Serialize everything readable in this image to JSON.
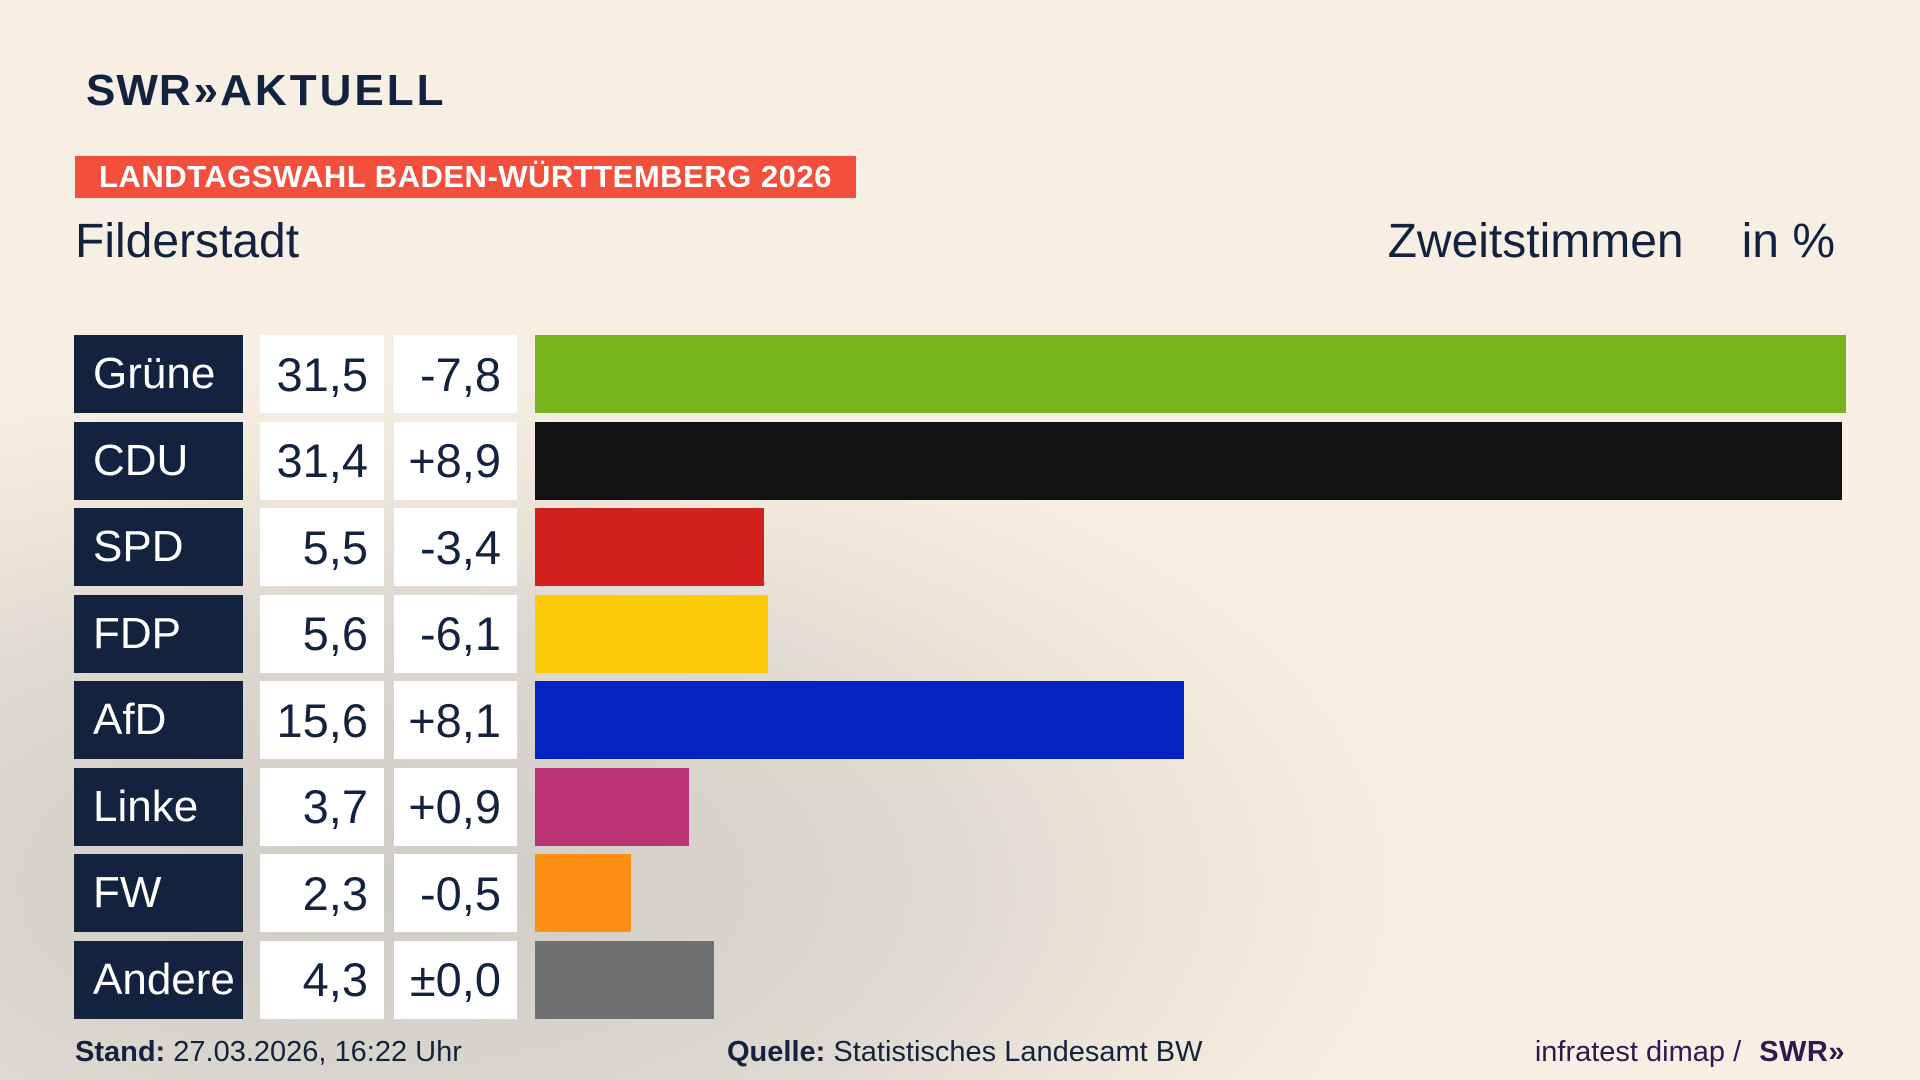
{
  "header": {
    "logo_swr": "SWR",
    "logo_chevrons": "»",
    "logo_aktuell": "AKTUELL",
    "banner": "LANDTAGSWAHL BADEN-WÜRTTEMBERG 2026",
    "banner_color": "#f2503c"
  },
  "title": {
    "region": "Filderstadt",
    "measure": "Zweitstimmen",
    "unit": "in %"
  },
  "chart_data": {
    "type": "bar",
    "orientation": "horizontal",
    "title": "Landtagswahl Baden-Württemberg 2026 — Filderstadt, Zweitstimmen in %",
    "categories": [
      "Grüne",
      "CDU",
      "SPD",
      "FDP",
      "AfD",
      "Linke",
      "FW",
      "Andere"
    ],
    "values": [
      31.5,
      31.4,
      5.5,
      5.6,
      15.6,
      3.7,
      2.3,
      4.3
    ],
    "value_labels": [
      "31,5",
      "31,4",
      "5,5",
      "5,6",
      "15,6",
      "3,7",
      "2,3",
      "4,3"
    ],
    "change_labels": [
      "-7,8",
      "+8,9",
      "-3,4",
      "-6,1",
      "+8,1",
      "+0,9",
      "-0,5",
      "±0,0"
    ],
    "bar_colors": [
      "#78b41e",
      "#121212",
      "#d2201f",
      "#fdca07",
      "#0522c2",
      "#bd3274",
      "#fd8e14",
      "#6e7072"
    ],
    "scale_max": 31.5,
    "unit": "percent",
    "legend": "none",
    "grid": "off"
  },
  "footer": {
    "stand_label": "Stand:",
    "stand_value": "27.03.2026, 16:22 Uhr",
    "quelle_label": "Quelle:",
    "quelle_value": "Statistisches Landesamt BW",
    "credit_text": "infratest dimap /",
    "credit_logo": "SWR»"
  },
  "colors": {
    "navy": "#13233f",
    "background_cream": "#f7efe3",
    "background_gray": "#cfccc5",
    "cell_white": "#ffffff",
    "credit_purple": "#2b1c4f"
  }
}
